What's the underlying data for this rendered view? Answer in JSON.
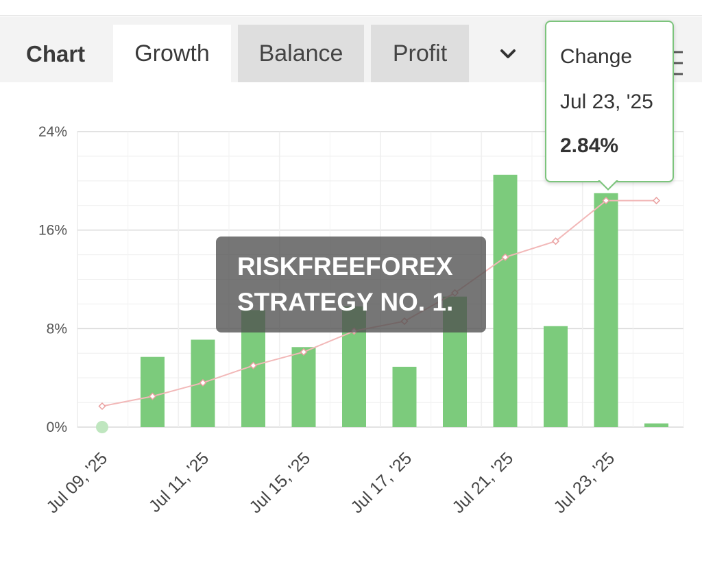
{
  "header": {
    "title": "Chart",
    "tabs": [
      {
        "label": "Growth",
        "active": true
      },
      {
        "label": "Balance",
        "active": false
      },
      {
        "label": "Profit",
        "active": false
      }
    ],
    "dropdown_icon": "chevron-down-icon",
    "menu_icon": "menu-icon"
  },
  "watermark": {
    "line1": "RISKFREEFOREX",
    "line2": "STRATEGY NO. 1."
  },
  "tooltip": {
    "label": "Change",
    "date": "Jul 23, '25",
    "value": "2.84%"
  },
  "chart_data": {
    "type": "bar",
    "ylim": [
      0,
      24
    ],
    "yticks": [
      "0%",
      "8%",
      "16%",
      "24%"
    ],
    "xtick_labels": [
      "Jul 09, '25",
      "Jul 11, '25",
      "Jul 15, '25",
      "Jul 17, '25",
      "Jul 21, '25",
      "Jul 23, '25"
    ],
    "bar_color": "#7ccb7c",
    "line_color": "#f2b8b8",
    "bars": [
      0.0,
      5.7,
      7.1,
      9.5,
      6.5,
      9.8,
      4.9,
      10.6,
      20.5,
      8.2,
      19.0,
      0.3
    ],
    "line": [
      1.7,
      2.5,
      3.6,
      5.0,
      6.1,
      7.8,
      8.6,
      10.9,
      13.8,
      15.1,
      18.4,
      18.4
    ],
    "grid": true,
    "legend": "none"
  }
}
